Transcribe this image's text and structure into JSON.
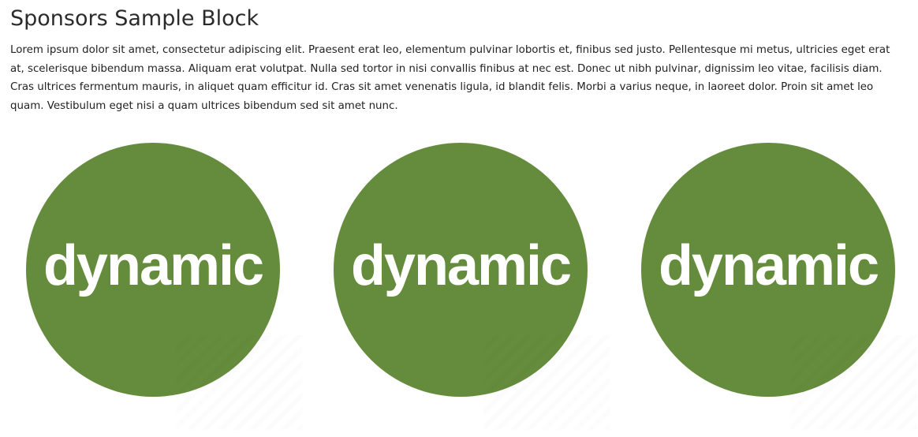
{
  "block": {
    "title": "Sponsors Sample Block",
    "description": "Lorem ipsum dolor sit amet, consectetur adipiscing elit. Praesent erat leo, elementum pulvinar lobortis et, finibus sed justo. Pellentesque mi metus, ultricies eget erat at, scelerisque bibendum massa. Aliquam erat volutpat. Nulla sed tortor in nisi convallis finibus at nec est. Donec ut nibh pulvinar, dignissim leo vitae, facilisis diam. Cras ultrices fermentum mauris, in aliquet quam efficitur id. Cras sit amet venenatis ligula, id blandit felis. Morbi a varius neque, in laoreet dolor. Proin sit amet leo quam. Vestibulum eget nisi a quam ultrices bibendum sed sit amet nunc."
  },
  "sponsors": [
    {
      "logo_text": "dynamic",
      "logo_color": "#658b3c"
    },
    {
      "logo_text": "dynamic",
      "logo_color": "#658b3c"
    },
    {
      "logo_text": "dynamic",
      "logo_color": "#658b3c"
    }
  ],
  "colors": {
    "logo_green": "#658b3c",
    "logo_text": "#ffffff",
    "body_text": "#222222"
  }
}
